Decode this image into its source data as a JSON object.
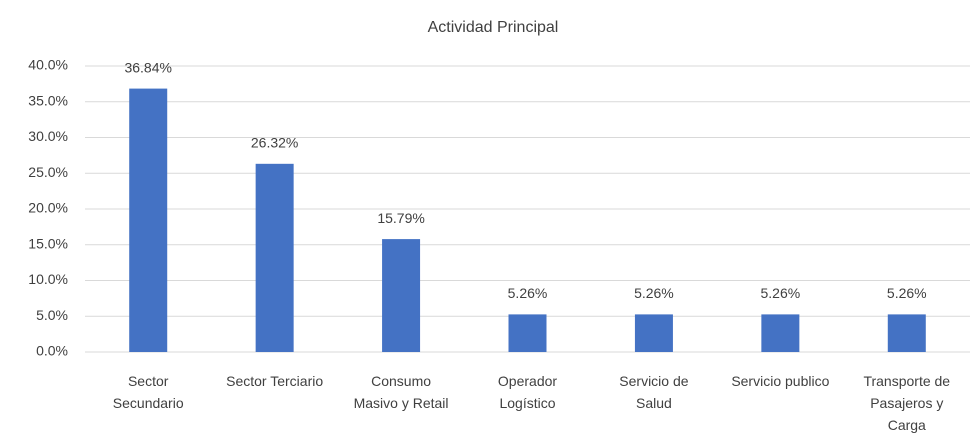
{
  "chart_data": {
    "type": "bar",
    "title": "Actividad Principal",
    "categories": [
      "Sector Secundario",
      "Sector Terciario",
      "Consumo Masivo y Retail",
      "Operador Logístico",
      "Servicio de Salud",
      "Servicio publico",
      "Transporte de Pasajeros y Carga"
    ],
    "values": [
      36.84,
      26.32,
      15.79,
      5.26,
      5.26,
      5.26,
      5.26
    ],
    "value_labels": [
      "36.84%",
      "26.32%",
      "15.79%",
      "5.26%",
      "5.26%",
      "5.26%",
      "5.26%"
    ],
    "color": "#4472c4",
    "ylim": [
      0,
      40
    ],
    "yticks": [
      {
        "value": 0,
        "label": "0.0%"
      },
      {
        "value": 5,
        "label": "5.0%"
      },
      {
        "value": 10,
        "label": "10.0%"
      },
      {
        "value": 15,
        "label": "15.0%"
      },
      {
        "value": 20,
        "label": "20.0%"
      },
      {
        "value": 25,
        "label": "25.0%"
      },
      {
        "value": 30,
        "label": "30.0%"
      },
      {
        "value": 35,
        "label": "35.0%"
      },
      {
        "value": 40,
        "label": "40.0%"
      }
    ],
    "grid": true
  }
}
